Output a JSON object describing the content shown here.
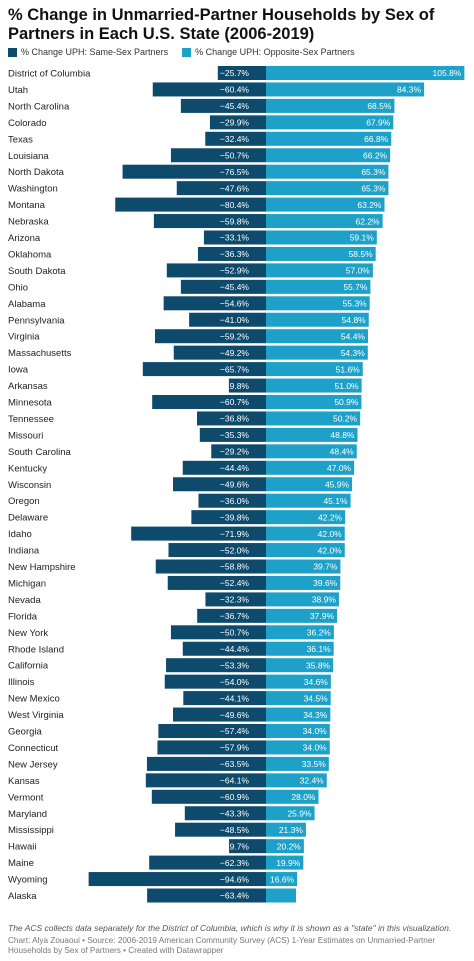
{
  "header": {
    "title": "% Change in Unmarried-Partner Households by Sex of Partners in Each U.S. State (2006-2019)"
  },
  "legend": [
    {
      "label": "% Change UPH: Same-Sex Partners",
      "color": "#0d4a6b"
    },
    {
      "label": "% Change UPH: Opposite-Sex Partners",
      "color": "#1ea1c9"
    }
  ],
  "footer": {
    "note": "The ACS collects data separately for the District of Columbia, which is why it is shown as a \"state\" in this visualization.",
    "source": "Chart: Alya Zouaoui • Source: 2006-2019 American Community Survey (ACS) 1-Year Estimates on Unmarried-Partner Households by Sex of Partners • Created with Datawrapper"
  },
  "chart_data": {
    "type": "bar",
    "orientation": "horizontal-diverging",
    "categories": [
      "District of Columbia",
      "Utah",
      "North Carolina",
      "Colorado",
      "Texas",
      "Louisiana",
      "North Dakota",
      "Washington",
      "Montana",
      "Nebraska",
      "Arizona",
      "Oklahoma",
      "South Dakota",
      "Ohio",
      "Alabama",
      "Pennsylvania",
      "Virginia",
      "Massachusetts",
      "Iowa",
      "Arkansas",
      "Minnesota",
      "Tennessee",
      "Missouri",
      "South Carolina",
      "Kentucky",
      "Wisconsin",
      "Oregon",
      "Delaware",
      "Idaho",
      "Indiana",
      "New Hampshire",
      "Michigan",
      "Nevada",
      "Florida",
      "New York",
      "Rhode Island",
      "California",
      "Illinois",
      "New Mexico",
      "West Virginia",
      "Georgia",
      "Connecticut",
      "New Jersey",
      "Kansas",
      "Vermont",
      "Maryland",
      "Mississippi",
      "Hawaii",
      "Maine",
      "Wyoming",
      "Alaska"
    ],
    "series": [
      {
        "name": "% Change UPH: Same-Sex Partners",
        "color": "#0d4a6b",
        "values": [
          -25.7,
          -60.4,
          -45.4,
          -29.9,
          -32.4,
          -50.7,
          -76.5,
          -47.6,
          -80.4,
          -59.8,
          -33.1,
          -36.3,
          -52.9,
          -45.4,
          -54.6,
          -41.0,
          -59.2,
          -49.2,
          -65.7,
          -19.8,
          -60.7,
          -36.8,
          -35.3,
          -29.2,
          -44.4,
          -49.6,
          -36.0,
          -39.8,
          -71.9,
          -52.0,
          -58.8,
          -52.4,
          -32.3,
          -36.7,
          -50.7,
          -44.4,
          -53.3,
          -54.0,
          -44.1,
          -49.6,
          -57.4,
          -57.9,
          -63.5,
          -64.1,
          -60.9,
          -43.3,
          -48.5,
          -19.7,
          -62.3,
          -94.6,
          -63.4
        ]
      },
      {
        "name": "% Change UPH: Opposite-Sex Partners",
        "color": "#1ea1c9",
        "values": [
          105.8,
          84.3,
          68.5,
          67.9,
          66.8,
          66.2,
          65.3,
          65.3,
          63.2,
          62.2,
          59.1,
          58.5,
          57.0,
          55.7,
          55.3,
          54.8,
          54.4,
          54.3,
          51.6,
          51.0,
          50.9,
          50.2,
          48.8,
          48.4,
          47.0,
          45.9,
          45.1,
          42.2,
          42.0,
          42.0,
          39.7,
          39.6,
          38.9,
          37.9,
          36.2,
          36.1,
          35.8,
          34.6,
          34.5,
          34.3,
          34.0,
          34.0,
          33.5,
          32.4,
          28.0,
          25.9,
          21.3,
          20.2,
          19.9,
          16.6,
          null
        ]
      }
    ],
    "value_suffix": "%",
    "negative_prefix": "−"
  }
}
